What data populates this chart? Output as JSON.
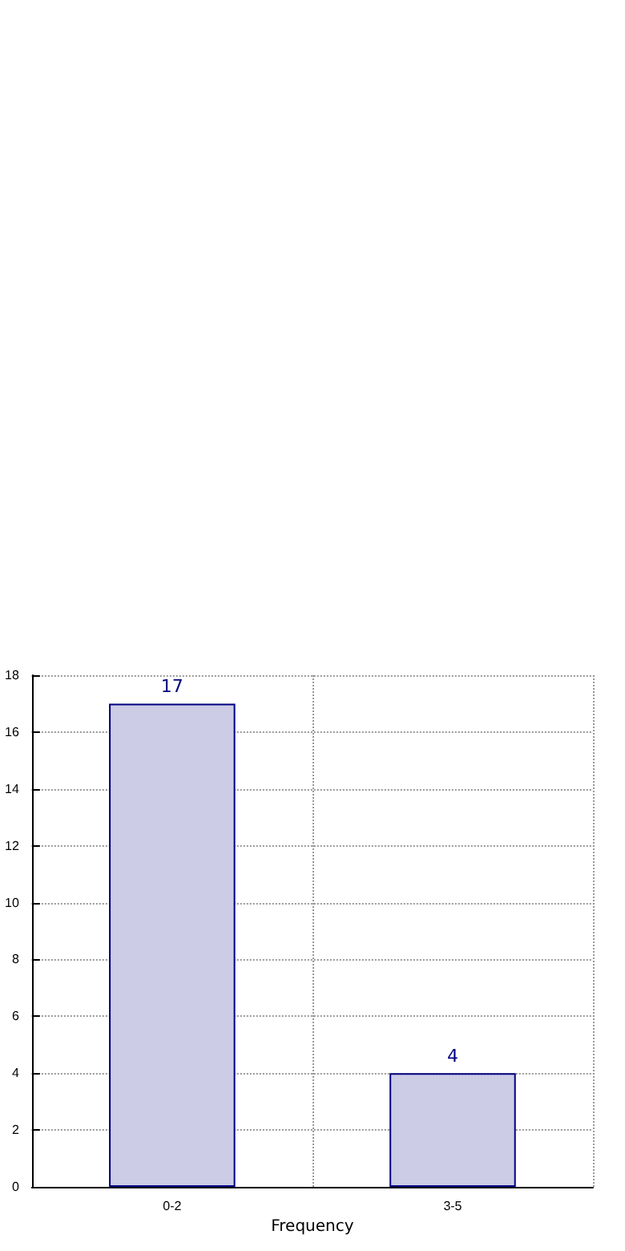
{
  "chart_data": {
    "type": "bar",
    "xlabel": "Frequency",
    "categories": [
      "0-2",
      "3-5"
    ],
    "series": [
      {
        "color": "#cccce6",
        "values": [
          17,
          4
        ]
      }
    ],
    "ylim": [
      0,
      18
    ],
    "yticks": [
      0,
      2,
      4,
      6,
      8,
      10,
      12,
      14,
      16,
      18
    ],
    "grid": true,
    "data_labels": true
  }
}
